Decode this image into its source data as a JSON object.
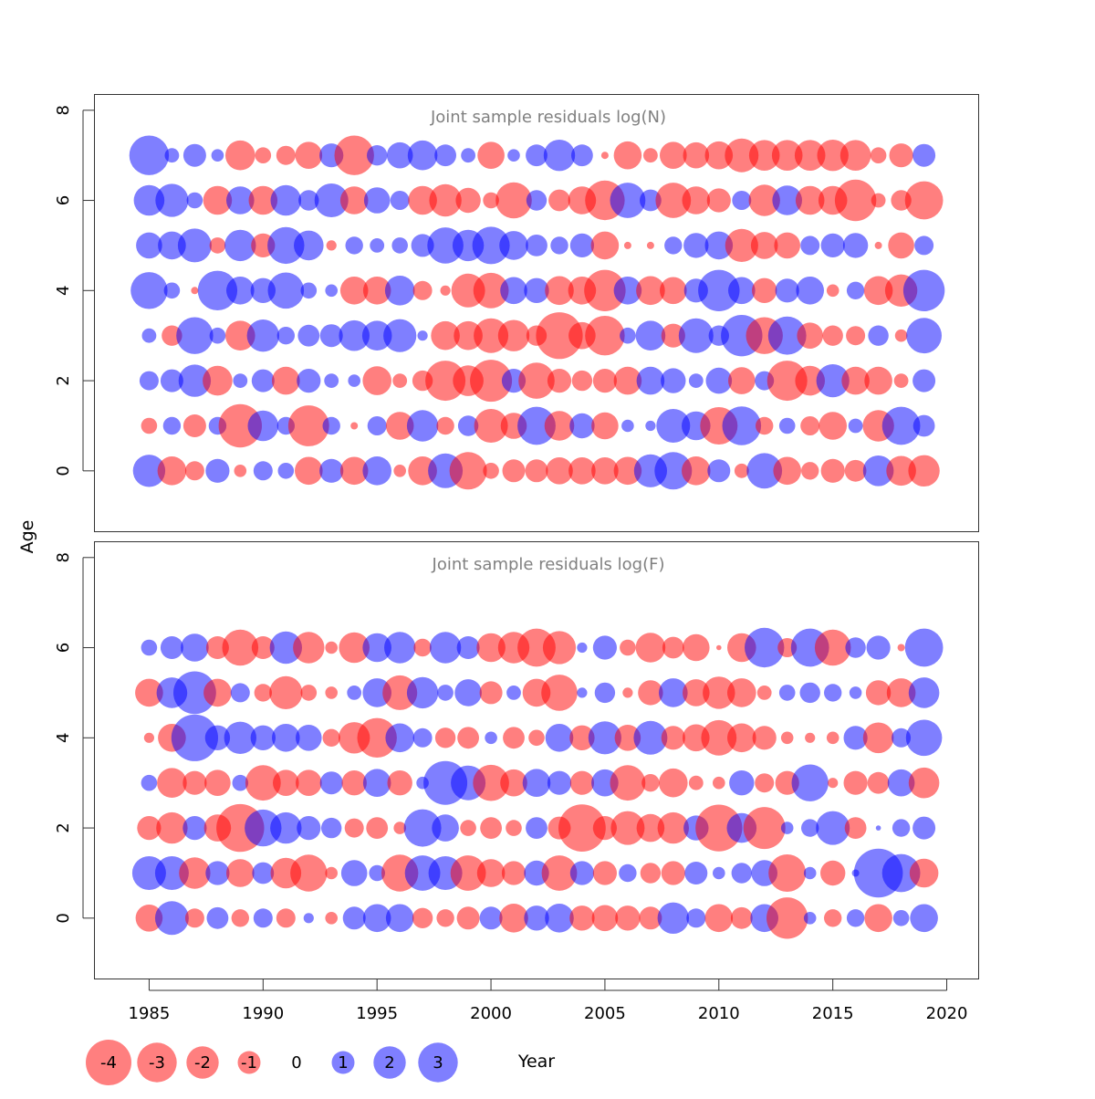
{
  "chart_data": {
    "type": "scatter",
    "ylabel": "Age",
    "xlabel": "Year",
    "xlim": [
      1982.6,
      2021.4
    ],
    "x_ticks": [
      1985,
      1990,
      1995,
      2000,
      2005,
      2010,
      2015,
      2020
    ],
    "years": [
      1985,
      1986,
      1987,
      1988,
      1989,
      1990,
      1991,
      1992,
      1993,
      1994,
      1995,
      1996,
      1997,
      1998,
      1999,
      2000,
      2001,
      2002,
      2003,
      2004,
      2005,
      2006,
      2007,
      2008,
      2009,
      2010,
      2011,
      2012,
      2013,
      2014,
      2015,
      2016,
      2017,
      2018,
      2019
    ],
    "colors": {
      "negative": "#FF0000",
      "positive": "#0000FF",
      "opacity": 0.5
    },
    "legend": {
      "values": [
        -4,
        -3,
        -2,
        -1,
        0,
        1,
        2,
        3
      ],
      "labels": [
        "-4",
        "-3",
        "-2",
        "-1",
        "0",
        "1",
        "2",
        "3"
      ]
    },
    "panels": [
      {
        "title": "Joint sample residuals log(N)",
        "ylim": [
          -1.35,
          8.35
        ],
        "y_ticks": [
          0,
          2,
          4,
          6,
          8
        ],
        "ages": [
          0,
          1,
          2,
          3,
          4,
          5,
          6,
          7
        ],
        "residuals": [
          [
            2.0,
            -1.6,
            -0.7,
            1.1,
            -0.3,
            0.7,
            0.5,
            -1.5,
            1.1,
            -1.5,
            1.6,
            -0.3,
            -1.6,
            2.3,
            -2.7,
            -0.5,
            -1.0,
            -1.0,
            -1.4,
            -1.4,
            -1.4,
            -1.5,
            2.1,
            2.7,
            -1.6,
            1.0,
            -0.4,
            2.4,
            -1.5,
            -0.6,
            -1.1,
            -0.9,
            1.8,
            -1.7,
            -1.9
          ],
          [
            -0.5,
            0.6,
            -1.0,
            0.6,
            -3.6,
            1.8,
            0.6,
            -3.2,
            0.6,
            -0.1,
            0.7,
            -1.5,
            1.9,
            -0.6,
            0.8,
            -2.2,
            -1.3,
            2.8,
            -1.7,
            1.2,
            -1.4,
            0.3,
            0.2,
            2.2,
            1.6,
            -2.7,
            2.9,
            -0.6,
            0.5,
            -0.7,
            -1.5,
            0.4,
            -1.9,
            2.8,
            0.9
          ],
          [
            0.7,
            1.0,
            2.0,
            -1.7,
            0.4,
            1.0,
            -1.5,
            1.1,
            0.4,
            0.3,
            -1.6,
            -0.4,
            -0.8,
            -3.1,
            -1.8,
            -3.4,
            1.1,
            -2.5,
            -1.1,
            -0.8,
            -1.1,
            -1.5,
            1.5,
            1.2,
            0.4,
            1.3,
            -1.4,
            0.7,
            -3.1,
            -1.7,
            2.1,
            -1.5,
            -1.5,
            -0.4,
            1.0
          ],
          [
            0.4,
            -0.8,
            2.6,
            0.5,
            -1.7,
            2.0,
            0.6,
            0.9,
            1.0,
            1.8,
            1.7,
            2.1,
            0.2,
            -1.6,
            -1.6,
            -2.3,
            -1.9,
            -0.8,
            -4.2,
            -1.4,
            -3.0,
            0.5,
            1.7,
            -1.1,
            2.3,
            0.8,
            3.3,
            -2.6,
            2.8,
            -1.3,
            -0.8,
            -0.7,
            0.8,
            -0.3,
            2.4
          ],
          [
            2.6,
            0.5,
            -0.1,
            3.0,
            1.5,
            1.2,
            2.5,
            0.5,
            0.3,
            -1.5,
            -1.5,
            1.7,
            -0.7,
            -0.2,
            -2.2,
            -2.4,
            1.4,
            1.2,
            -1.6,
            -1.5,
            -3.3,
            1.5,
            -1.6,
            -1.4,
            1.1,
            3.3,
            1.4,
            -1.2,
            1.1,
            1.5,
            -0.3,
            0.6,
            -1.6,
            -2.0,
            3.3
          ],
          [
            1.3,
            1.5,
            2.2,
            -0.5,
            1.9,
            -1.1,
            2.6,
            1.7,
            -0.2,
            0.6,
            0.4,
            0.5,
            1.0,
            2.5,
            1.9,
            2.7,
            1.6,
            0.9,
            0.6,
            1.1,
            -1.5,
            -0.1,
            -0.1,
            0.6,
            1.2,
            1.5,
            -2.1,
            -1.4,
            -1.3,
            0.7,
            1.1,
            1.2,
            -0.1,
            -1.3,
            0.7
          ],
          [
            1.8,
            2.1,
            0.5,
            -1.6,
            1.5,
            -1.6,
            1.8,
            0.8,
            2.2,
            -1.5,
            1.3,
            0.7,
            -1.6,
            -2.0,
            -1.2,
            -0.5,
            -2.5,
            0.8,
            -0.9,
            -1.5,
            -3.0,
            2.4,
            0.9,
            -2.4,
            -1.5,
            -1.1,
            0.7,
            -1.9,
            1.7,
            -1.6,
            -1.6,
            -3.3,
            -0.4,
            -0.8,
            -2.8
          ],
          [
            3.0,
            0.4,
            1.0,
            0.3,
            -1.7,
            -0.5,
            -0.7,
            -1.4,
            1.1,
            -3.0,
            0.8,
            1.3,
            1.7,
            0.9,
            0.4,
            -1.4,
            0.3,
            0.9,
            1.9,
            0.9,
            -0.1,
            -1.5,
            -0.4,
            -1.4,
            -1.3,
            -1.5,
            -2.2,
            -1.8,
            -1.8,
            -1.8,
            -1.9,
            -1.8,
            -0.5,
            -1.1,
            1.0
          ]
        ]
      },
      {
        "title": "Joint sample residuals log(F)",
        "ylim": [
          -1.35,
          8.35
        ],
        "y_ticks": [
          0,
          2,
          4,
          6,
          8
        ],
        "ages": [
          0,
          1,
          2,
          3,
          4,
          5,
          6
        ],
        "residuals": [
          [
            -1.4,
            2.2,
            -0.7,
            0.9,
            -0.6,
            0.7,
            -0.7,
            0.2,
            -0.3,
            1.0,
            1.5,
            1.5,
            -0.8,
            -0.6,
            -1.0,
            1.0,
            -1.6,
            1.2,
            1.6,
            -1.2,
            -1.3,
            -1.2,
            -1.0,
            1.9,
            0.7,
            -1.5,
            -0.9,
            1.5,
            -3.3,
            0.3,
            -0.6,
            0.6,
            -1.5,
            0.5,
            1.5
          ],
          [
            2.2,
            2.2,
            -1.9,
            1.1,
            -1.5,
            0.9,
            -1.8,
            -2.6,
            -0.3,
            1.3,
            0.5,
            -2.6,
            2.4,
            2.2,
            -2.4,
            -1.5,
            -1.1,
            1.2,
            -2.4,
            1.1,
            -1.1,
            0.6,
            -0.8,
            -1.1,
            1.0,
            0.3,
            0.8,
            1.3,
            -2.7,
            0.3,
            -1.2,
            0.1,
            4.6,
            2.8,
            -1.6
          ],
          [
            -1.1,
            -1.9,
            1.1,
            -1.4,
            -4.4,
            2.6,
            1.9,
            1.1,
            0.8,
            -0.7,
            -0.9,
            -0.3,
            2.7,
            1.4,
            -0.5,
            -0.9,
            -0.5,
            0.9,
            -1.0,
            -4.3,
            -1.1,
            -2.2,
            -1.5,
            -1.9,
            1.2,
            -4.2,
            1.7,
            -3.4,
            0.3,
            0.6,
            2.2,
            -0.9,
            0.05,
            0.6,
            1.0
          ],
          [
            0.5,
            -1.7,
            -1.1,
            -1.3,
            0.5,
            -2.4,
            -1.3,
            -1.3,
            1.0,
            -1.2,
            1.5,
            -1.2,
            0.3,
            3.7,
            2.3,
            -2.5,
            -1.4,
            1.5,
            1.1,
            -1.1,
            1.4,
            -2.4,
            -0.6,
            -1.6,
            -0.4,
            -0.3,
            1.2,
            -0.7,
            -1.1,
            2.6,
            -0.2,
            -1.1,
            -0.9,
            1.4,
            -1.8
          ],
          [
            -0.2,
            -1.5,
            4.2,
            1.2,
            2.0,
            1.2,
            1.5,
            1.3,
            -0.6,
            -1.9,
            -3.0,
            1.6,
            0.7,
            -0.8,
            -0.9,
            0.3,
            -0.9,
            -0.5,
            1.5,
            -1.2,
            2.1,
            -1.3,
            2.2,
            -1.1,
            -1.4,
            -2.4,
            -1.6,
            -1.1,
            -0.3,
            -0.2,
            -0.3,
            1.1,
            -1.8,
            0.7,
            2.5
          ],
          [
            -1.5,
            1.8,
            3.5,
            -1.5,
            0.7,
            -0.6,
            -2.1,
            -0.5,
            -0.3,
            0.4,
            1.6,
            -2.3,
            1.9,
            0.5,
            1.4,
            -1.0,
            0.4,
            -1.5,
            -2.5,
            0.2,
            0.8,
            -0.2,
            -1.2,
            1.6,
            -1.4,
            -2.0,
            -1.6,
            -0.4,
            0.5,
            0.8,
            0.6,
            0.3,
            -1.2,
            -1.6,
            1.8
          ],
          [
            0.5,
            1.0,
            1.5,
            -1.0,
            -2.5,
            -1.0,
            2.0,
            -1.9,
            -0.3,
            -1.8,
            1.6,
            1.9,
            -0.6,
            1.9,
            1.0,
            -1.6,
            -1.9,
            -2.8,
            -2.1,
            0.2,
            1.1,
            -0.5,
            -1.7,
            -0.9,
            -1.4,
            -0.05,
            -1.6,
            3.0,
            -0.7,
            2.8,
            -2.5,
            0.8,
            1.1,
            -0.1,
            2.8
          ]
        ]
      }
    ]
  }
}
